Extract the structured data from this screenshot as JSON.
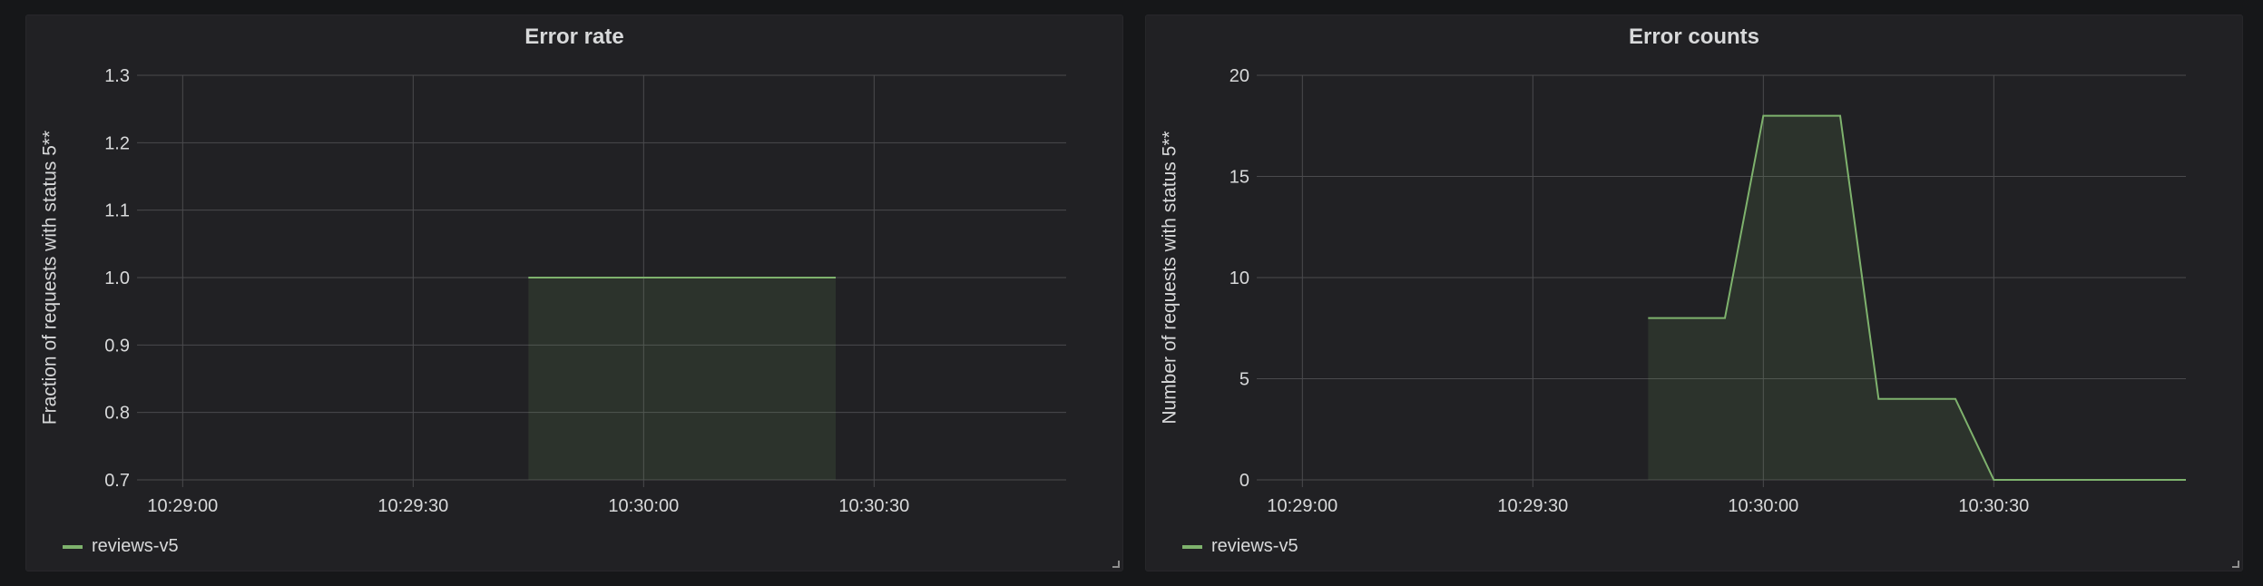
{
  "colors": {
    "series": "#7eb26d",
    "fill": "#2a2f2a",
    "grid": "#4a4a4d",
    "text": "#d8d9da"
  },
  "panels": [
    {
      "title": "Error rate",
      "legend": "reviews-v5"
    },
    {
      "title": "Error counts",
      "legend": "reviews-v5"
    }
  ],
  "chart_data": [
    {
      "type": "area",
      "title": "Error rate",
      "xlabel": "",
      "ylabel": "Fraction of requests with status 5**",
      "xlim": [
        "10:28:55",
        "10:30:55"
      ],
      "ylim": [
        0.7,
        1.3
      ],
      "x_ticks": [
        "10:29:00",
        "10:29:30",
        "10:30:00",
        "10:30:30"
      ],
      "y_ticks": [
        "0.7",
        "0.8",
        "0.9",
        "1.0",
        "1.1",
        "1.2",
        "1.3"
      ],
      "grid": true,
      "legend_position": "bottom-left",
      "series": [
        {
          "name": "reviews-v5",
          "x": [
            "10:29:45",
            "10:30:25"
          ],
          "values": [
            1.0,
            1.0
          ]
        }
      ]
    },
    {
      "type": "area",
      "title": "Error counts",
      "xlabel": "",
      "ylabel": "Number of requests with status 5**",
      "xlim": [
        "10:28:55",
        "10:30:55"
      ],
      "ylim": [
        0,
        20
      ],
      "x_ticks": [
        "10:29:00",
        "10:29:30",
        "10:30:00",
        "10:30:30"
      ],
      "y_ticks": [
        "0",
        "5",
        "10",
        "15",
        "20"
      ],
      "grid": true,
      "legend_position": "bottom-left",
      "series": [
        {
          "name": "reviews-v5",
          "x": [
            "10:29:45",
            "10:29:55",
            "10:30:00",
            "10:30:10",
            "10:30:15",
            "10:30:25",
            "10:30:30",
            "10:30:55"
          ],
          "values": [
            8,
            8,
            18,
            18,
            4,
            4,
            0,
            0
          ]
        }
      ]
    }
  ]
}
